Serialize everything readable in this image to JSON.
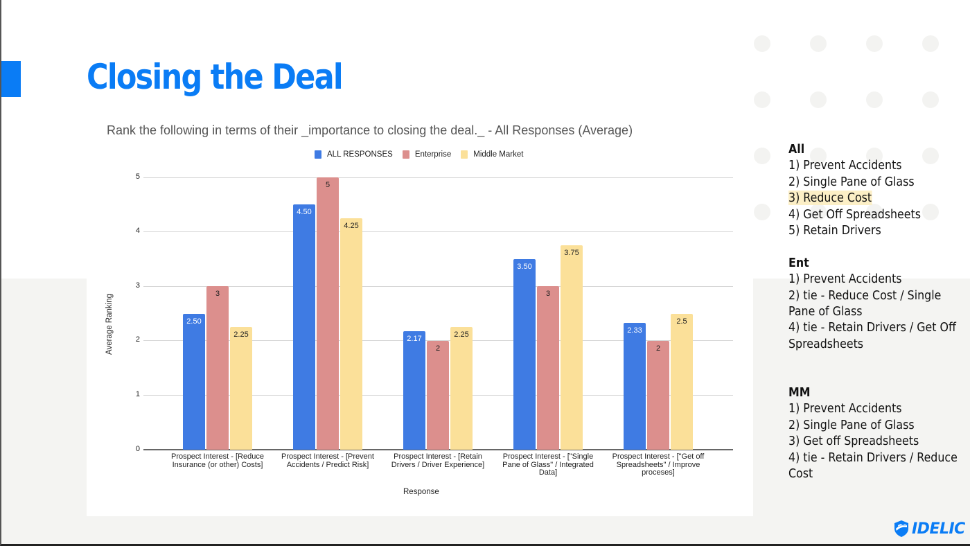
{
  "slide": {
    "title": "Closing the Deal",
    "accent_color": "#0a7cf5"
  },
  "chart": {
    "title": "Rank the following in terms of their _importance to closing the deal._ - All Responses (Average)",
    "legend": [
      {
        "label": "ALL RESPONSES",
        "color": "#3f7be3"
      },
      {
        "label": "Enterprise",
        "color": "#dc8f8d"
      },
      {
        "label": "Middle Market",
        "color": "#fbe099"
      }
    ],
    "y_axis_label": "Average Ranking",
    "x_axis_label": "Response",
    "y_ticks": [
      "0",
      "1",
      "2",
      "3",
      "4",
      "5"
    ],
    "categories": [
      {
        "line1": "Prospect Interest -  [Reduce",
        "line2": "Insurance (or other) Costs]",
        "line3": ""
      },
      {
        "line1": "Prospect Interest -  [Prevent",
        "line2": "Accidents / Predict Risk]",
        "line3": ""
      },
      {
        "line1": "Prospect Interest -  [Retain",
        "line2": "Drivers / Driver Experience]",
        "line3": ""
      },
      {
        "line1": "Prospect Interest -  [\"Single",
        "line2": "Pane of Glass\" / Integrated",
        "line3": "Data]"
      },
      {
        "line1": "Prospect Interest -  [\"Get off",
        "line2": "Spreadsheets\" / Improve",
        "line3": "proceses]"
      }
    ],
    "bar_labels": [
      [
        "2.50",
        "3",
        "2.25"
      ],
      [
        "4.50",
        "5",
        "4.25"
      ],
      [
        "2.17",
        "2",
        "2.25"
      ],
      [
        "3.50",
        "3",
        "3.75"
      ],
      [
        "2.33",
        "2",
        "2.5"
      ]
    ]
  },
  "chart_data": {
    "type": "bar",
    "title": "Rank the following in terms of their _importance to closing the deal._ - All Responses (Average)",
    "xlabel": "Response",
    "ylabel": "Average Ranking",
    "ylim": [
      0,
      5
    ],
    "yticks": [
      0,
      1,
      2,
      3,
      4,
      5
    ],
    "grid": true,
    "legend_position": "top",
    "categories": [
      "Prospect Interest -  [Reduce Insurance (or other) Costs]",
      "Prospect Interest -  [Prevent Accidents / Predict Risk]",
      "Prospect Interest -  [Retain Drivers / Driver Experience]",
      "Prospect Interest -  [\"Single Pane of Glass\" / Integrated Data]",
      "Prospect Interest -  [\"Get off Spreadsheets\" / Improve proceses]"
    ],
    "series": [
      {
        "name": "ALL RESPONSES",
        "color": "#3f7be3",
        "values": [
          2.5,
          4.5,
          2.17,
          3.5,
          2.33
        ]
      },
      {
        "name": "Enterprise",
        "color": "#dc8f8d",
        "values": [
          3,
          5,
          2,
          3,
          2
        ]
      },
      {
        "name": "Middle Market",
        "color": "#fbe099",
        "values": [
          2.25,
          4.25,
          2.25,
          3.75,
          2.5
        ]
      }
    ]
  },
  "notes": {
    "all": {
      "title": "All",
      "items": [
        "1) Prevent Accidents",
        "2) Single Pane of Glass",
        "3) Reduce Cost",
        "4) Get Off Spreadsheets",
        "5) Retain Drivers"
      ]
    },
    "ent": {
      "title": "Ent",
      "items": [
        "1) Prevent Accidents",
        "2) tie - Reduce Cost / Single",
        "Pane of Glass",
        "4) tie - Retain Drivers / Get Off",
        "Spreadsheets"
      ]
    },
    "mm": {
      "title": "MM",
      "items": [
        "1) Prevent Accidents",
        "2) Single Pane of Glass",
        "3) Get off Spreadsheets",
        "4) tie - Retain Drivers / Reduce",
        "Cost"
      ]
    }
  },
  "logo": {
    "text": "IDELIC"
  }
}
